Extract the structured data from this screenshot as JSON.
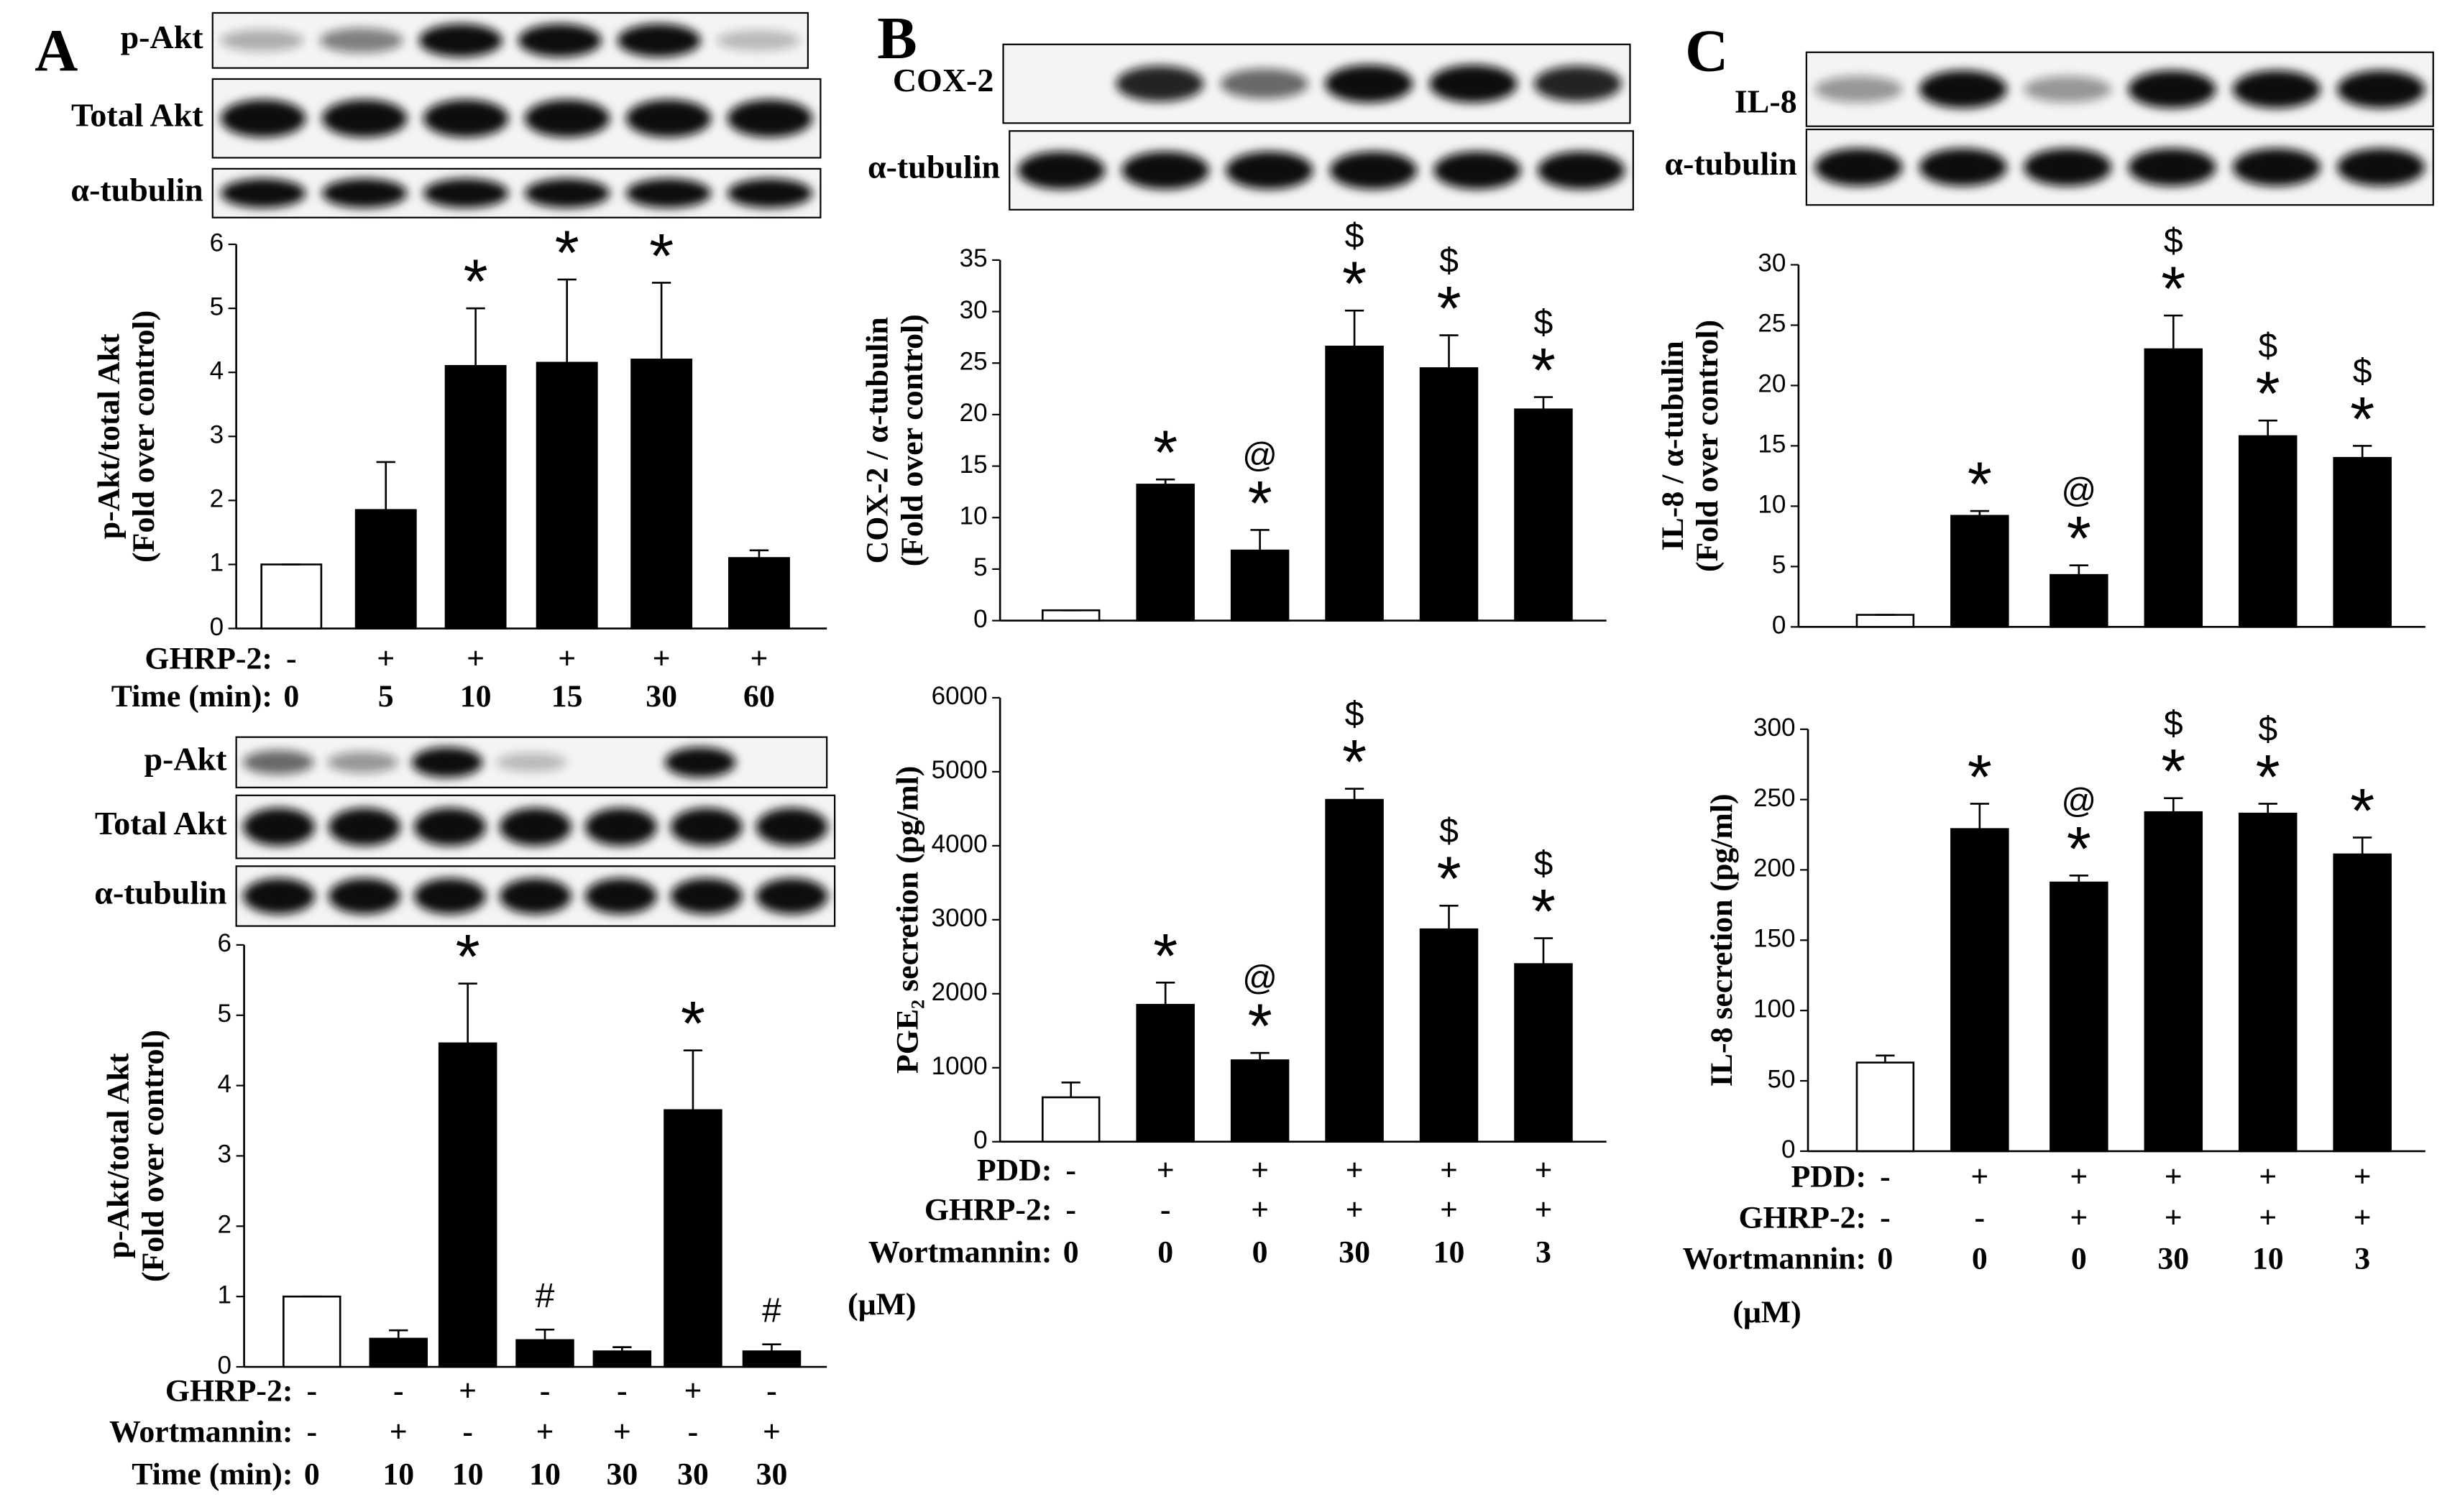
{
  "chart_data": [
    {
      "type": "bar",
      "panel": "A",
      "blots": [
        "p-Akt",
        "Total Akt",
        "α-tubulin"
      ],
      "y_label": [
        "p-Akt/total Akt",
        "(Fold over control)"
      ],
      "ylim": [
        0,
        6
      ],
      "yticks": [
        0,
        1,
        2,
        3,
        4,
        5,
        6
      ],
      "colors": [
        "#ffffff",
        "#000000",
        "#000000",
        "#000000",
        "#000000",
        "#000000"
      ],
      "values": [
        1,
        1.85,
        4.1,
        4.15,
        4.2,
        1.1
      ],
      "errors": [
        0,
        0.75,
        0.9,
        1.3,
        1.2,
        0.12
      ],
      "annotations": [
        [],
        [],
        [
          "*"
        ],
        [
          "*"
        ],
        [
          "*"
        ],
        []
      ],
      "conditions": [
        {
          "label": "GHRP-2:",
          "values": [
            "-",
            "+",
            "+",
            "+",
            "+",
            "+"
          ]
        },
        {
          "label": "Time (min):",
          "values": [
            "0",
            "5",
            "10",
            "15",
            "30",
            "60"
          ]
        }
      ]
    },
    {
      "type": "bar",
      "blots": [
        "p-Akt",
        "Total Akt",
        "α-tubulin"
      ],
      "y_label": [
        "p-Akt/total Akt",
        "(Fold over control)"
      ],
      "ylim": [
        0,
        6
      ],
      "yticks": [
        0,
        1,
        2,
        3,
        4,
        5,
        6
      ],
      "colors": [
        "#ffffff",
        "#000000",
        "#000000",
        "#000000",
        "#000000",
        "#000000",
        "#000000"
      ],
      "values": [
        1,
        0.4,
        4.6,
        0.38,
        0.22,
        3.65,
        0.22
      ],
      "errors": [
        0,
        0.12,
        0.85,
        0.15,
        0.06,
        0.85,
        0.1
      ],
      "annotations": [
        [],
        [],
        [
          "*"
        ],
        [
          "#"
        ],
        [],
        [
          "*"
        ],
        [
          "#"
        ]
      ],
      "conditions": [
        {
          "label": "GHRP-2:",
          "values": [
            "-",
            "-",
            "+",
            "-",
            "-",
            "+",
            "-"
          ]
        },
        {
          "label": "Wortmannin:",
          "values": [
            "-",
            "+",
            "-",
            "+",
            "+",
            "-",
            "+"
          ]
        },
        {
          "label": "Time (min):",
          "values": [
            "0",
            "10",
            "10",
            "10",
            "30",
            "30",
            "30"
          ]
        }
      ]
    },
    {
      "type": "bar",
      "panel": "B",
      "blots": [
        "COX-2",
        "α-tubulin"
      ],
      "y_label": [
        "COX-2 / α-tubulin",
        "(Fold over control)"
      ],
      "ylim": [
        0,
        35
      ],
      "yticks": [
        0,
        5,
        10,
        15,
        20,
        25,
        30,
        35
      ],
      "colors": [
        "#ffffff",
        "#000000",
        "#000000",
        "#000000",
        "#000000",
        "#000000"
      ],
      "values": [
        1,
        13.2,
        6.8,
        26.6,
        24.5,
        20.5
      ],
      "errors": [
        0,
        0.5,
        2,
        3.5,
        3.2,
        1.2
      ],
      "annotations": [
        [],
        [
          "*"
        ],
        [
          "*",
          "@"
        ],
        [
          "*",
          "$"
        ],
        [
          "*",
          "$"
        ],
        [
          "*",
          "$"
        ]
      ]
    },
    {
      "type": "bar",
      "y_label": [
        "PGE₂ secretion (pg/ml)"
      ],
      "ylim": [
        0,
        6000
      ],
      "yticks": [
        0,
        1000,
        2000,
        3000,
        4000,
        5000,
        6000
      ],
      "colors": [
        "#ffffff",
        "#000000",
        "#000000",
        "#000000",
        "#000000",
        "#000000"
      ],
      "values": [
        600,
        1850,
        1100,
        4620,
        2870,
        2400
      ],
      "errors": [
        200,
        300,
        100,
        150,
        320,
        350
      ],
      "annotations": [
        [],
        [
          "*"
        ],
        [
          "*",
          "@"
        ],
        [
          "*",
          "$"
        ],
        [
          "*",
          "$"
        ],
        [
          "*",
          "$"
        ]
      ],
      "conditions": [
        {
          "label": "PDD:",
          "values": [
            "-",
            "+",
            "+",
            "+",
            "+",
            "+"
          ]
        },
        {
          "label": "GHRP-2:",
          "values": [
            "-",
            "-",
            "+",
            "+",
            "+",
            "+"
          ]
        },
        {
          "label": "Wortmannin:",
          "values": [
            "0",
            "0",
            "0",
            "30",
            "10",
            "3"
          ]
        }
      ],
      "unit": "(μM)"
    },
    {
      "type": "bar",
      "panel": "C",
      "blots": [
        "IL-8",
        "α-tubulin"
      ],
      "y_label": [
        "IL-8 / α-tubulin",
        "(Fold over control)"
      ],
      "ylim": [
        0,
        30
      ],
      "yticks": [
        0,
        5,
        10,
        15,
        20,
        25,
        30
      ],
      "colors": [
        "#ffffff",
        "#000000",
        "#000000",
        "#000000",
        "#000000",
        "#000000"
      ],
      "values": [
        1,
        9.2,
        4.3,
        23,
        15.8,
        14
      ],
      "errors": [
        0,
        0.4,
        0.8,
        2.8,
        1.3,
        1.0
      ],
      "annotations": [
        [],
        [
          "*"
        ],
        [
          "*",
          "@"
        ],
        [
          "*",
          "$"
        ],
        [
          "*",
          "$"
        ],
        [
          "*",
          "$"
        ]
      ]
    },
    {
      "type": "bar",
      "y_label": [
        "IL-8 secretion (pg/ml)"
      ],
      "ylim": [
        0,
        300
      ],
      "yticks": [
        0,
        50,
        100,
        150,
        200,
        250,
        300
      ],
      "colors": [
        "#ffffff",
        "#000000",
        "#000000",
        "#000000",
        "#000000",
        "#000000"
      ],
      "values": [
        63,
        229,
        191,
        241,
        240,
        211
      ],
      "errors": [
        5,
        18,
        5,
        10,
        7,
        12
      ],
      "annotations": [
        [],
        [
          "*"
        ],
        [
          "*",
          "@"
        ],
        [
          "*",
          "$"
        ],
        [
          "*",
          "$"
        ],
        [
          "*"
        ]
      ],
      "conditions": [
        {
          "label": "PDD:",
          "values": [
            "-",
            "+",
            "+",
            "+",
            "+",
            "+"
          ]
        },
        {
          "label": "GHRP-2:",
          "values": [
            "-",
            "-",
            "+",
            "+",
            "+",
            "+"
          ]
        },
        {
          "label": "Wortmannin:",
          "values": [
            "0",
            "0",
            "0",
            "30",
            "10",
            "3"
          ]
        }
      ],
      "unit": "(μM)"
    }
  ]
}
